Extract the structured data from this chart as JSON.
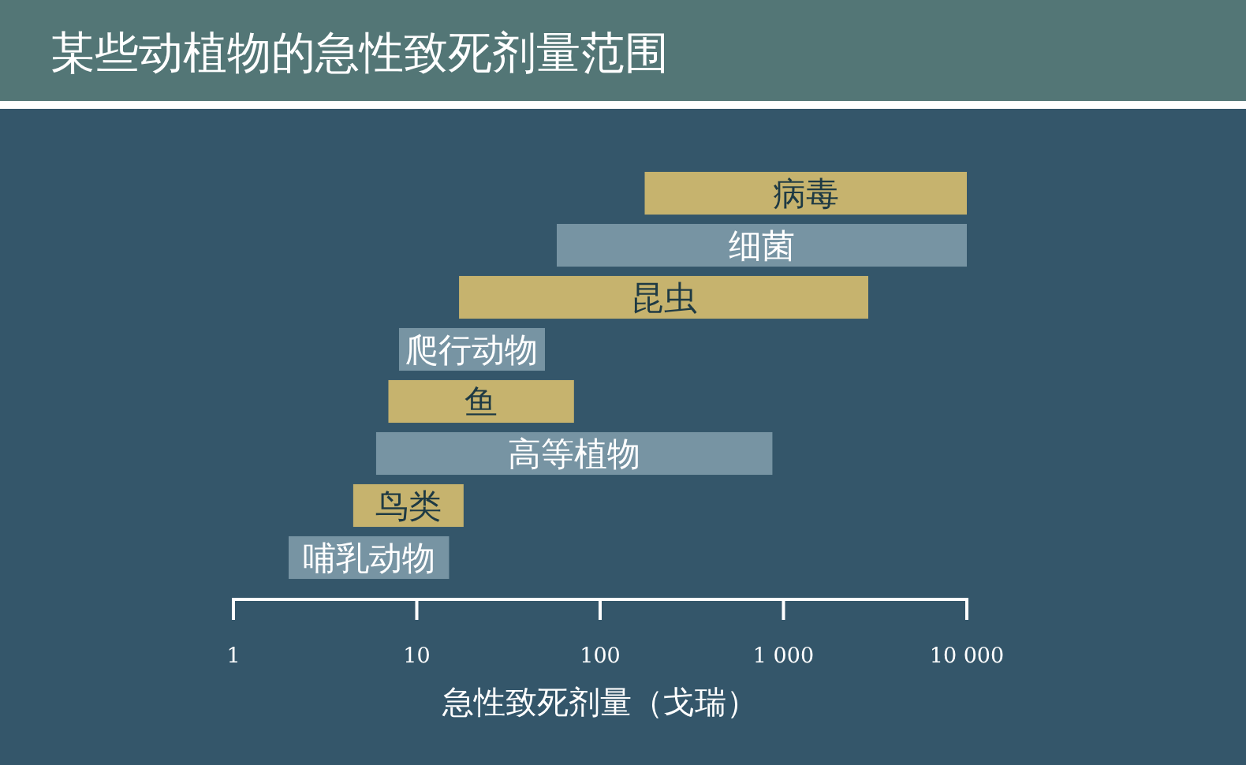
{
  "chart_data": {
    "type": "bar",
    "orientation": "horizontal",
    "title": "某些动植物的急性致死剂量范围",
    "xlabel": "急性致死剂量（戈瑞）",
    "categories": [
      "病毒",
      "细菌",
      "昆虫",
      "爬行动物",
      "鱼",
      "高等植物",
      "鸟类",
      "哺乳动物"
    ],
    "base": [
      175,
      58,
      17,
      8,
      7,
      6,
      4.5,
      2
    ],
    "values": [
      9825,
      9942,
      2883,
      42,
      65,
      864,
      13.5,
      13
    ],
    "colors": [
      "#c6b36e",
      "#7794a3",
      "#c6b36e",
      "#7794a3",
      "#c6b36e",
      "#7794a3",
      "#c6b36e",
      "#7794a3"
    ],
    "log": "x",
    "xlim": [
      1,
      10000
    ],
    "xticks": [
      1,
      10,
      100,
      {
        "value": 1000,
        "label": "1 000"
      },
      {
        "value": 10000,
        "label": "10 000"
      }
    ]
  }
}
